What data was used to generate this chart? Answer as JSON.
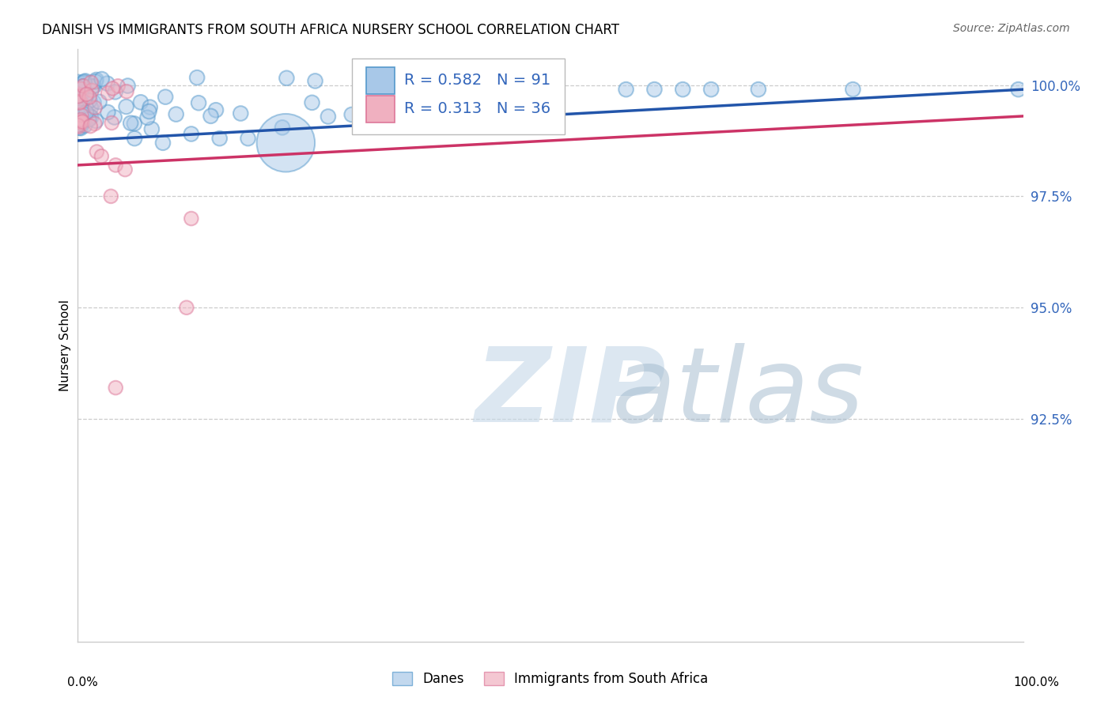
{
  "title": "DANISH VS IMMIGRANTS FROM SOUTH AFRICA NURSERY SCHOOL CORRELATION CHART",
  "source": "Source: ZipAtlas.com",
  "ylabel": "Nursery School",
  "legend_label_danes": "Danes",
  "legend_label_imm": "Immigrants from South Africa",
  "R_danes": 0.582,
  "N_danes": 91,
  "R_imm": 0.313,
  "N_imm": 36,
  "danes_color": "#a8c8e8",
  "danes_edge_color": "#5599cc",
  "danes_line_color": "#2255aa",
  "imm_color": "#f0b0c0",
  "imm_edge_color": "#dd7799",
  "imm_line_color": "#cc3366",
  "legend_text_color": "#3366bb",
  "grid_color": "#cccccc",
  "bg_color": "#ffffff",
  "xlim": [
    0.0,
    1.0
  ],
  "ylim": [
    0.875,
    1.008
  ],
  "yticks": [
    1.0,
    0.975,
    0.95,
    0.925
  ],
  "ytick_labels": [
    "100.0%",
    "97.5%",
    "95.0%",
    "92.5%"
  ],
  "ytick_color": "#3366bb",
  "watermark_zip_color": "#c5d8e8",
  "watermark_atlas_color": "#a0b8cc"
}
